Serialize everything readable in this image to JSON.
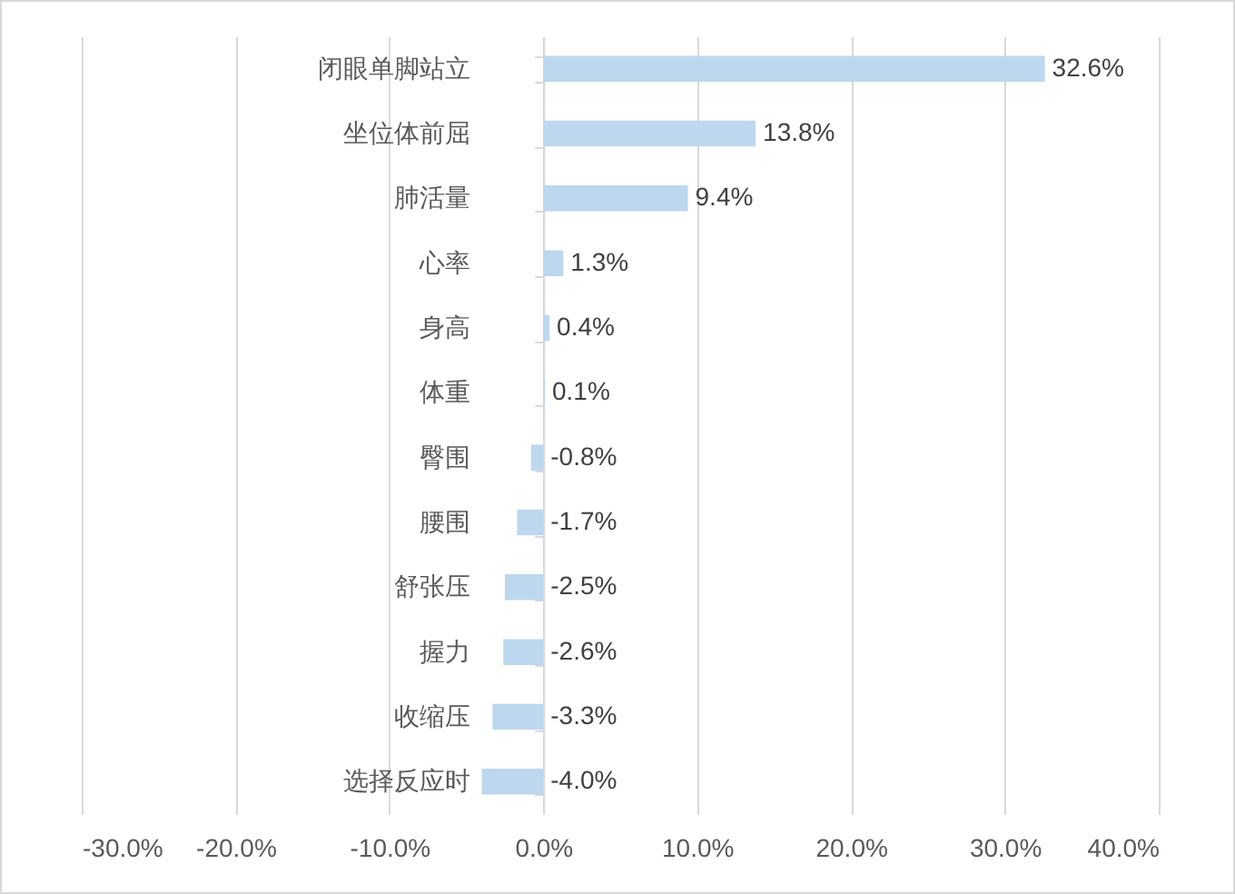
{
  "chart_data": {
    "type": "bar",
    "orientation": "horizontal",
    "categories": [
      "闭眼单脚站立",
      "坐位体前屈",
      "肺活量",
      "心率",
      "身高",
      "体重",
      "臀围",
      "腰围",
      "舒张压",
      "握力",
      "收缩压",
      "选择反应时"
    ],
    "values": [
      32.6,
      13.8,
      9.4,
      1.3,
      0.4,
      0.1,
      -0.8,
      -1.7,
      -2.5,
      -2.6,
      -3.3,
      -4.0
    ],
    "value_labels": [
      "32.6%",
      "13.8%",
      "9.4%",
      "1.3%",
      "0.4%",
      "0.1%",
      "-0.8%",
      "-1.7%",
      "-2.5%",
      "-2.6%",
      "-3.3%",
      "-4.0%"
    ],
    "color": "#bdd7ee",
    "xlim": [
      -30,
      40
    ],
    "xticks": [
      {
        "value": -30,
        "label": "-30.0%"
      },
      {
        "value": -20,
        "label": "-20.0%"
      },
      {
        "value": -10,
        "label": "-10.0%"
      },
      {
        "value": 0,
        "label": "0.0%"
      },
      {
        "value": 10,
        "label": "10.0%"
      },
      {
        "value": 20,
        "label": "20.0%"
      },
      {
        "value": 30,
        "label": "30.0%"
      },
      {
        "value": 40,
        "label": "40.0%"
      }
    ],
    "grid": "x"
  }
}
